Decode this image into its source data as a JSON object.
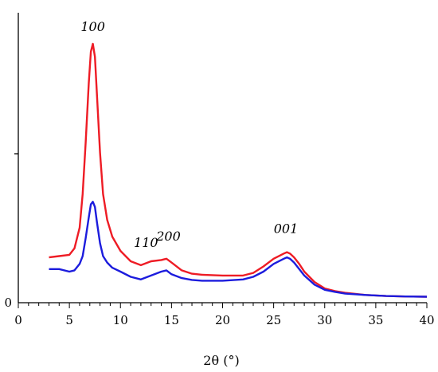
{
  "chart_data": {
    "type": "line",
    "title": "",
    "xlabel": "2θ (°)",
    "ylabel": "",
    "xlim": [
      0,
      40
    ],
    "ylim": [
      0,
      1
    ],
    "x_ticks": [
      "0",
      "5",
      "10",
      "15",
      "20",
      "25",
      "30",
      "35",
      "40"
    ],
    "y_ticks": [
      "0"
    ],
    "grid": false,
    "legend": "none",
    "annotations": [
      {
        "text": "100",
        "x": 7.3,
        "y": 1.05
      },
      {
        "text": "110",
        "x": 12.5,
        "y": 0.215
      },
      {
        "text": "200",
        "x": 14.7,
        "y": 0.24
      },
      {
        "text": "001",
        "x": 26.2,
        "y": 0.27
      }
    ],
    "series": [
      {
        "color": "#ee1c25",
        "x": [
          3,
          4,
          5,
          5.5,
          6,
          6.3,
          6.6,
          6.9,
          7.1,
          7.3,
          7.5,
          7.7,
          8,
          8.3,
          8.7,
          9.2,
          10,
          11,
          12,
          13,
          14,
          14.5,
          15,
          16,
          17,
          18,
          20,
          22,
          23,
          24,
          25,
          26,
          26.3,
          26.6,
          27,
          27.5,
          28,
          29,
          30,
          31,
          32,
          34,
          36,
          38,
          40
        ],
        "y": [
          0.175,
          0.18,
          0.185,
          0.21,
          0.29,
          0.42,
          0.62,
          0.85,
          0.97,
          1.0,
          0.95,
          0.8,
          0.58,
          0.42,
          0.32,
          0.255,
          0.2,
          0.16,
          0.145,
          0.16,
          0.165,
          0.17,
          0.155,
          0.125,
          0.112,
          0.108,
          0.105,
          0.105,
          0.115,
          0.14,
          0.17,
          0.19,
          0.195,
          0.19,
          0.175,
          0.15,
          0.12,
          0.08,
          0.055,
          0.045,
          0.038,
          0.03,
          0.026,
          0.024,
          0.023
        ]
      },
      {
        "color": "#1c1cdd",
        "x": [
          3,
          4,
          5,
          5.5,
          6,
          6.3,
          6.6,
          6.9,
          7.1,
          7.3,
          7.5,
          7.7,
          8,
          8.3,
          8.7,
          9.2,
          10,
          11,
          12,
          13,
          14,
          14.5,
          15,
          16,
          17,
          18,
          20,
          22,
          23,
          24,
          25,
          26,
          26.3,
          26.6,
          27,
          27.5,
          28,
          29,
          30,
          31,
          32,
          34,
          36,
          38,
          40
        ],
        "y": [
          0.13,
          0.13,
          0.12,
          0.125,
          0.15,
          0.18,
          0.25,
          0.33,
          0.38,
          0.39,
          0.37,
          0.31,
          0.23,
          0.18,
          0.155,
          0.135,
          0.12,
          0.1,
          0.09,
          0.105,
          0.12,
          0.125,
          0.11,
          0.095,
          0.088,
          0.085,
          0.085,
          0.09,
          0.1,
          0.12,
          0.15,
          0.17,
          0.175,
          0.17,
          0.155,
          0.13,
          0.105,
          0.07,
          0.05,
          0.042,
          0.035,
          0.03,
          0.026,
          0.024,
          0.023
        ]
      }
    ]
  }
}
